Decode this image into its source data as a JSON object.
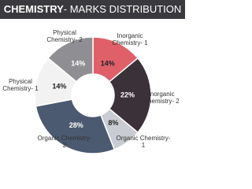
{
  "chart_data": {
    "type": "donut",
    "title": "CHEMISTRY",
    "subtitle": "- MARKS DISTRIBUTION",
    "categories": [
      "Inorganic Chemistry- 1",
      "Inorganic Chemistry- 2",
      "Organic Chemistry- 1",
      "Organic Chemistry- 2",
      "Physical Chemistry- 1",
      "Physical Chemistry- 2"
    ],
    "values": [
      14,
      22,
      8,
      28,
      14,
      14
    ],
    "value_labels": [
      "14%",
      "22%",
      "8%",
      "28%",
      "14%",
      "14%"
    ],
    "colors": [
      "#e0606a",
      "#3b3138",
      "#c9ccd2",
      "#4b5a70",
      "#f2f2f2",
      "#8f8f93"
    ]
  }
}
